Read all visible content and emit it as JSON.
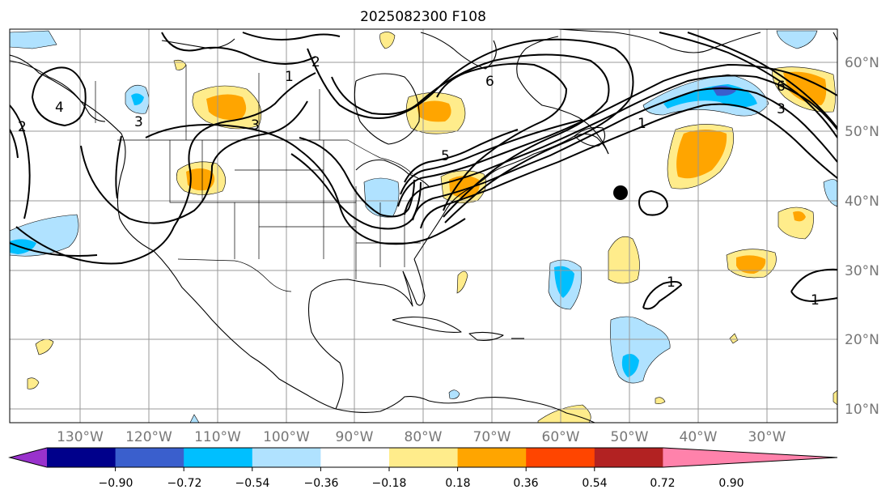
{
  "title": "2025082300 F108",
  "lat_labels": [
    "60°N",
    "50°N",
    "40°N",
    "30°N",
    "20°N",
    "10°N"
  ],
  "lon_labels": [
    "130°W",
    "120°W",
    "110°W",
    "100°W",
    "90°W",
    "80°W",
    "70°W",
    "60°W",
    "50°W",
    "40°W",
    "30°W"
  ],
  "colorbar": {
    "colors": [
      "#9932cc",
      "#00008b",
      "#3a5fcd",
      "#00bfff",
      "#b0e2ff",
      "#ffffff",
      "#ffec8b",
      "#ffa500",
      "#ff4500",
      "#b22222",
      "#ff82ab"
    ],
    "tick_labels": [
      "−0.90",
      "−0.72",
      "−0.54",
      "−0.36",
      "−0.18",
      "0.18",
      "0.36",
      "0.54",
      "0.72",
      "0.90"
    ]
  },
  "contour_labels": [
    "1",
    "2",
    "3",
    "3",
    "4",
    "5",
    "6",
    "6",
    "3",
    "2",
    "1",
    "1",
    "1"
  ],
  "colors": {
    "grid": "#999999",
    "coast": "#000000",
    "contour": "#000000"
  }
}
